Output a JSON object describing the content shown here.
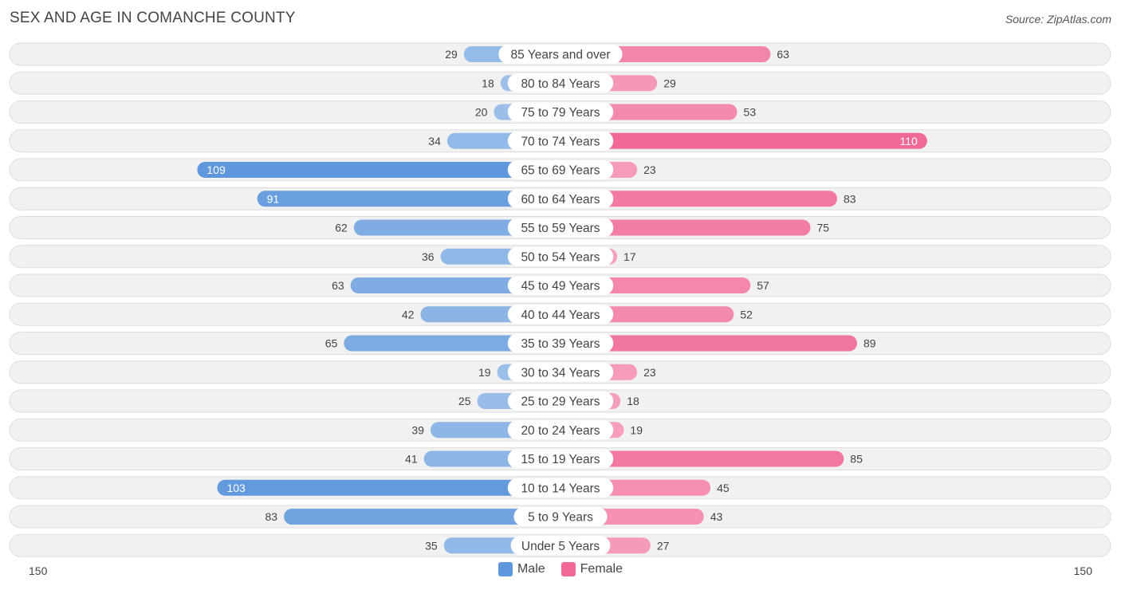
{
  "title": "SEX AND AGE IN COMANCHE COUNTY",
  "source": "Source: ZipAtlas.com",
  "colors": {
    "male_strong": "#5e97dc",
    "male_light": "#a9c8ec",
    "female_strong": "#f06a95",
    "female_light": "#f7a9c2",
    "row_bg": "#f1f1f1",
    "row_border": "#dedede"
  },
  "chart_data": {
    "type": "bar",
    "title": "SEX AND AGE IN COMANCHE COUNTY",
    "orientation": "horizontal-diverging",
    "categories": [
      "85 Years and over",
      "80 to 84 Years",
      "75 to 79 Years",
      "70 to 74 Years",
      "65 to 69 Years",
      "60 to 64 Years",
      "55 to 59 Years",
      "50 to 54 Years",
      "45 to 49 Years",
      "40 to 44 Years",
      "35 to 39 Years",
      "30 to 34 Years",
      "25 to 29 Years",
      "20 to 24 Years",
      "15 to 19 Years",
      "10 to 14 Years",
      "5 to 9 Years",
      "Under 5 Years"
    ],
    "series": [
      {
        "name": "Male",
        "values": [
          29,
          18,
          20,
          34,
          109,
          91,
          62,
          36,
          63,
          42,
          65,
          19,
          25,
          39,
          41,
          103,
          83,
          35
        ]
      },
      {
        "name": "Female",
        "values": [
          63,
          29,
          53,
          110,
          23,
          83,
          75,
          17,
          57,
          52,
          89,
          23,
          18,
          19,
          85,
          45,
          43,
          27
        ]
      }
    ],
    "axis_max": 150,
    "axis_labels": {
      "left": "150",
      "right": "150"
    },
    "legend": [
      {
        "name": "Male"
      },
      {
        "name": "Female"
      }
    ],
    "legend_position": "bottom-center"
  }
}
